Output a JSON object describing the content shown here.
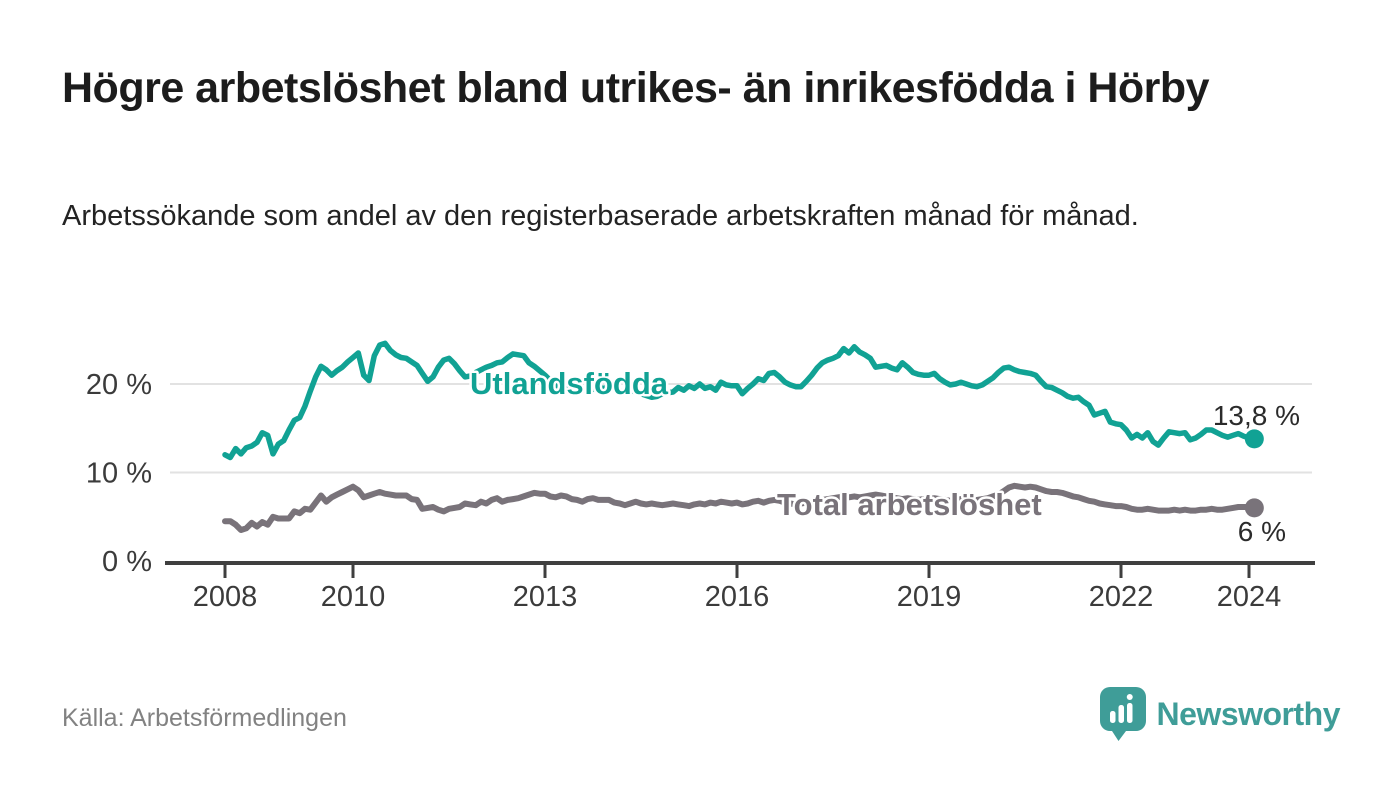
{
  "header": {
    "title": "Högre arbetslöshet bland utrikes- än inrikesfödda i Hörby",
    "subtitle": "Arbetssökande som andel av den registerbaserade arbetskraften månad för månad."
  },
  "footer": {
    "source": "Källa: Arbetsförmedlingen",
    "brand_name": "Newsworthy",
    "brand_icon": "newsworthy-pin-bar-chart-icon"
  },
  "colors": {
    "teal_series": "#11a294",
    "gray_series": "#79737a",
    "value_label": "#2b2b2b",
    "axis_line": "#3f3f3f",
    "axis_text": "#3b3b3b",
    "gridline": "#e2e2e2",
    "title_text": "#1c1c1c",
    "source_text": "#828282",
    "brand_teal": "#3f9d98"
  },
  "chart_data": {
    "type": "line",
    "title": "",
    "xlabel": "",
    "ylabel": "",
    "x_unit": "year-month",
    "x_start_year": 2008,
    "frequency": "monthly",
    "ylim": [
      0,
      26
    ],
    "grid": "horizontal",
    "legend_position": "inline-labels",
    "x_ticks": [
      {
        "value": 2008,
        "label": "2008"
      },
      {
        "value": 2010,
        "label": "2010"
      },
      {
        "value": 2013,
        "label": "2013"
      },
      {
        "value": 2016,
        "label": "2016"
      },
      {
        "value": 2019,
        "label": "2019"
      },
      {
        "value": 2022,
        "label": "2022"
      },
      {
        "value": 2024,
        "label": "2024"
      }
    ],
    "y_ticks": [
      {
        "value": 0,
        "label": "0 %"
      },
      {
        "value": 10,
        "label": "10 %"
      },
      {
        "value": 20,
        "label": "20 %"
      }
    ],
    "series": [
      {
        "name": "Utlandsfödda",
        "color": "#11a294",
        "end_value_label": "13,8 %",
        "values": [
          12.0,
          11.7,
          12.7,
          12.1,
          12.8,
          13.0,
          13.4,
          14.5,
          14.2,
          12.1,
          13.2,
          13.6,
          14.8,
          15.9,
          16.2,
          17.5,
          19.2,
          20.8,
          22.0,
          21.6,
          21.0,
          21.5,
          21.9,
          22.5,
          23.0,
          23.5,
          21.0,
          20.4,
          23.2,
          24.4,
          24.6,
          23.8,
          23.3,
          23.0,
          22.9,
          22.5,
          22.1,
          21.2,
          20.3,
          20.8,
          21.9,
          22.7,
          22.9,
          22.3,
          21.5,
          20.8,
          20.9,
          21.3,
          21.6,
          21.9,
          22.1,
          22.4,
          22.5,
          23.0,
          23.4,
          23.3,
          23.2,
          22.4,
          22.0,
          21.5,
          21.0,
          20.4,
          19.9,
          19.6,
          19.4,
          19.5,
          19.7,
          19.4,
          19.2,
          19.4,
          19.6,
          19.5,
          19.7,
          19.4,
          19.2,
          19.0,
          19.3,
          19.1,
          18.9,
          18.7,
          18.5,
          18.6,
          18.9,
          19.0,
          19.1,
          19.6,
          19.3,
          19.8,
          19.5,
          20.0,
          19.5,
          19.7,
          19.3,
          20.2,
          19.9,
          19.8,
          19.8,
          18.9,
          19.5,
          20.0,
          20.6,
          20.4,
          21.2,
          21.3,
          20.8,
          20.2,
          19.9,
          19.7,
          19.7,
          20.3,
          21.0,
          21.8,
          22.4,
          22.7,
          22.9,
          23.2,
          24.0,
          23.5,
          24.2,
          23.6,
          23.3,
          22.9,
          21.9,
          22.0,
          22.1,
          21.8,
          21.6,
          22.4,
          21.9,
          21.3,
          21.1,
          21.0,
          21.0,
          21.2,
          20.6,
          20.2,
          19.9,
          20.0,
          20.2,
          20.0,
          19.8,
          19.7,
          19.9,
          20.3,
          20.7,
          21.3,
          21.8,
          21.9,
          21.6,
          21.4,
          21.3,
          21.2,
          21.0,
          20.3,
          19.7,
          19.6,
          19.3,
          19.0,
          18.6,
          18.4,
          18.5,
          18.0,
          17.6,
          16.5,
          16.7,
          16.9,
          15.7,
          15.5,
          15.4,
          14.8,
          13.9,
          14.3,
          13.9,
          14.5,
          13.5,
          13.1,
          13.9,
          14.6,
          14.5,
          14.4,
          14.5,
          13.7,
          13.9,
          14.3,
          14.8,
          14.8,
          14.5,
          14.2,
          14.0,
          14.2,
          14.4,
          14.1,
          13.9,
          13.8
        ]
      },
      {
        "name": "Total arbetslöshet",
        "color": "#79737a",
        "end_value_label": "6 %",
        "values": [
          4.5,
          4.5,
          4.1,
          3.5,
          3.7,
          4.3,
          3.9,
          4.4,
          4.1,
          5.0,
          4.8,
          4.8,
          4.8,
          5.6,
          5.4,
          5.9,
          5.8,
          6.6,
          7.4,
          6.7,
          7.2,
          7.5,
          7.8,
          8.1,
          8.4,
          8.0,
          7.2,
          7.4,
          7.6,
          7.8,
          7.6,
          7.5,
          7.4,
          7.4,
          7.4,
          7.0,
          6.9,
          5.9,
          6.0,
          6.1,
          5.8,
          5.6,
          5.9,
          6.0,
          6.1,
          6.5,
          6.4,
          6.3,
          6.7,
          6.5,
          6.9,
          7.1,
          6.7,
          6.9,
          7.0,
          7.1,
          7.3,
          7.5,
          7.7,
          7.6,
          7.6,
          7.3,
          7.2,
          7.4,
          7.3,
          7.0,
          6.9,
          6.7,
          7.0,
          7.1,
          6.9,
          6.9,
          6.9,
          6.6,
          6.5,
          6.3,
          6.5,
          6.7,
          6.5,
          6.4,
          6.5,
          6.4,
          6.3,
          6.4,
          6.5,
          6.4,
          6.3,
          6.2,
          6.4,
          6.5,
          6.4,
          6.6,
          6.5,
          6.7,
          6.6,
          6.5,
          6.6,
          6.4,
          6.5,
          6.7,
          6.8,
          6.6,
          6.8,
          6.9,
          6.8,
          6.6,
          6.5,
          6.4,
          6.5,
          6.6,
          6.7,
          6.8,
          6.9,
          7.0,
          7.1,
          7.2,
          7.3,
          7.2,
          7.3,
          7.2,
          7.3,
          7.4,
          7.5,
          7.4,
          7.3,
          7.2,
          7.1,
          7.0,
          7.1,
          7.0,
          6.9,
          7.0,
          7.0,
          7.1,
          7.0,
          6.9,
          6.8,
          6.9,
          7.0,
          6.9,
          6.8,
          6.9,
          7.0,
          7.1,
          7.3,
          7.5,
          7.9,
          8.3,
          8.5,
          8.4,
          8.3,
          8.4,
          8.3,
          8.1,
          7.9,
          7.8,
          7.8,
          7.7,
          7.5,
          7.3,
          7.2,
          7.0,
          6.8,
          6.7,
          6.5,
          6.4,
          6.3,
          6.2,
          6.2,
          6.1,
          5.9,
          5.8,
          5.8,
          5.9,
          5.8,
          5.7,
          5.7,
          5.7,
          5.8,
          5.7,
          5.8,
          5.7,
          5.7,
          5.8,
          5.8,
          5.9,
          5.8,
          5.8,
          5.9,
          6.0,
          6.1,
          6.1,
          6.1,
          6.0
        ]
      }
    ]
  }
}
